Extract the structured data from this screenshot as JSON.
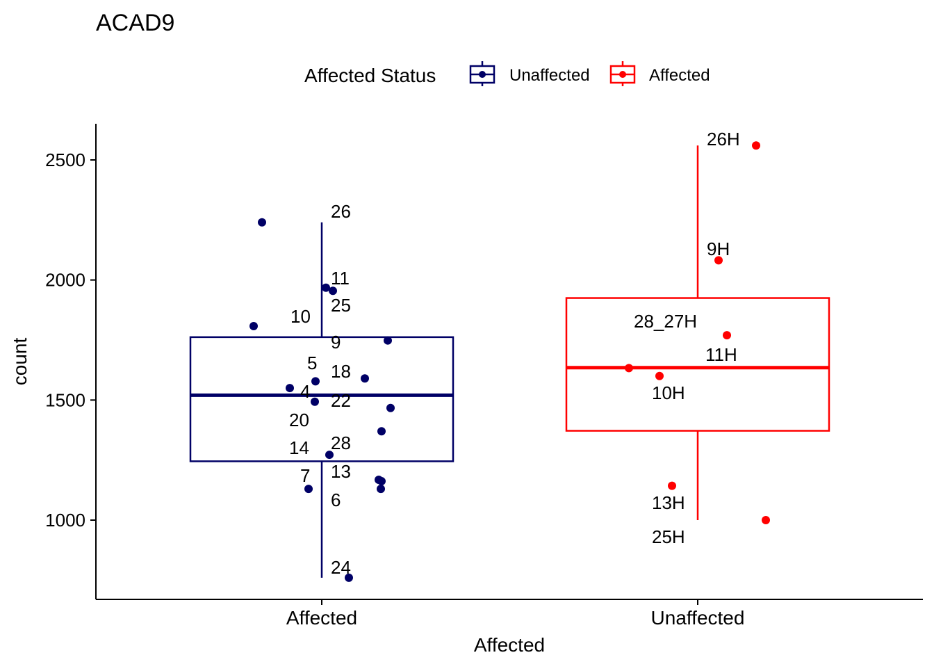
{
  "chart_data": {
    "type": "boxplot",
    "title": "ACAD9",
    "xlabel": "Affected",
    "ylabel": "count",
    "categories": [
      "Affected",
      "Unaffected"
    ],
    "yticks": [
      1000,
      1500,
      2000,
      2500
    ],
    "ylim": [
      700,
      2650
    ],
    "legend": {
      "title": "Affected Status",
      "position": "top",
      "entries": [
        {
          "label": "Unaffected",
          "color": "#000066"
        },
        {
          "label": "Affected",
          "color": "#FF0000"
        }
      ]
    },
    "series": [
      {
        "name": "Affected",
        "category": "Affected",
        "color": "#000066",
        "box": {
          "min": 760,
          "q1": 1245,
          "median": 1520,
          "q3": 1762,
          "max": 2240
        },
        "points": [
          {
            "label": "26",
            "value": 2240
          },
          {
            "label": "11",
            "value": 1968
          },
          {
            "label": "25",
            "value": 1955
          },
          {
            "label": "10",
            "value": 1808
          },
          {
            "label": "9",
            "value": 1748
          },
          {
            "label": "18",
            "value": 1590
          },
          {
            "label": "5",
            "value": 1578
          },
          {
            "label": "4",
            "value": 1550
          },
          {
            "label": "22",
            "value": 1493
          },
          {
            "label": "",
            "value": 1467
          },
          {
            "label": "20",
            "value": 1370
          },
          {
            "label": "28",
            "value": 1272
          },
          {
            "label": "14",
            "value": 1168
          },
          {
            "label": "13",
            "value": 1162
          },
          {
            "label": "7",
            "value": 1130
          },
          {
            "label": "6",
            "value": 1130
          },
          {
            "label": "24",
            "value": 760
          }
        ]
      },
      {
        "name": "Unaffected",
        "category": "Unaffected",
        "color": "#FF0000",
        "box": {
          "min": 1000,
          "q1": 1372,
          "median": 1635,
          "q3": 1925,
          "max": 2560
        },
        "points": [
          {
            "label": "26H",
            "value": 2560
          },
          {
            "label": "9H",
            "value": 2082
          },
          {
            "label": "11H",
            "value": 1770
          },
          {
            "label": "28_27H",
            "value": 1633
          },
          {
            "label": "10H",
            "value": 1600
          },
          {
            "label": "13H",
            "value": 1143
          },
          {
            "label": "25H",
            "value": 1000
          }
        ]
      }
    ]
  }
}
